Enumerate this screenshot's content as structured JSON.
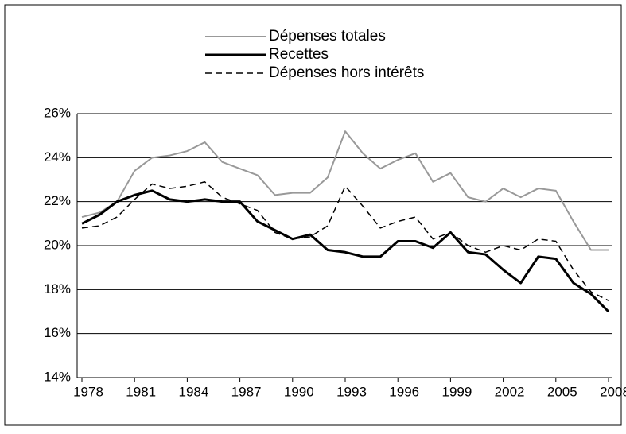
{
  "chart_data": {
    "type": "line",
    "x": [
      1978,
      1979,
      1980,
      1981,
      1982,
      1983,
      1984,
      1985,
      1986,
      1987,
      1988,
      1989,
      1990,
      1991,
      1992,
      1993,
      1994,
      1995,
      1996,
      1997,
      1998,
      1999,
      2000,
      2001,
      2002,
      2003,
      2004,
      2005,
      2006,
      2007,
      2008
    ],
    "series": [
      {
        "name": "Dépenses totales",
        "color": "#999999",
        "width": 2,
        "line_style": "solid",
        "values": [
          21.3,
          21.5,
          22.0,
          23.4,
          24.0,
          24.1,
          24.3,
          24.7,
          23.8,
          23.5,
          23.2,
          22.3,
          22.4,
          22.4,
          23.1,
          25.2,
          24.2,
          23.5,
          23.9,
          24.2,
          22.9,
          23.3,
          22.2,
          22.0,
          22.6,
          22.2,
          22.6,
          22.5,
          21.1,
          19.8,
          19.8
        ]
      },
      {
        "name": "Recettes",
        "color": "#000000",
        "width": 3,
        "line_style": "solid",
        "values": [
          21.0,
          21.4,
          22.0,
          22.3,
          22.5,
          22.1,
          22.0,
          22.1,
          22.0,
          22.0,
          21.1,
          20.7,
          20.3,
          20.5,
          19.8,
          19.7,
          19.5,
          19.5,
          20.2,
          20.2,
          19.9,
          20.6,
          19.7,
          19.6,
          18.9,
          18.3,
          19.5,
          19.4,
          18.3,
          17.8,
          17.0
        ]
      },
      {
        "name": "Dépenses hors intérêts",
        "color": "#000000",
        "width": 1.5,
        "line_style": "dashed",
        "values": [
          20.8,
          20.9,
          21.3,
          22.1,
          22.8,
          22.6,
          22.7,
          22.9,
          22.2,
          21.9,
          21.6,
          20.6,
          20.3,
          20.4,
          20.9,
          22.7,
          21.8,
          20.8,
          21.1,
          21.3,
          20.3,
          20.6,
          20.0,
          19.7,
          20.0,
          19.8,
          20.3,
          20.2,
          18.9,
          17.9,
          17.5
        ]
      }
    ],
    "xlim": [
      1978,
      2008
    ],
    "xticks": [
      1978,
      1981,
      1984,
      1987,
      1990,
      1993,
      1996,
      1999,
      2002,
      2005,
      2008
    ],
    "ylim": [
      14,
      26
    ],
    "yticks": [
      {
        "value": 14,
        "label": "14%"
      },
      {
        "value": 16,
        "label": "16%"
      },
      {
        "value": 18,
        "label": "18%"
      },
      {
        "value": 20,
        "label": "20%"
      },
      {
        "value": 22,
        "label": "22%"
      },
      {
        "value": 24,
        "label": "24%"
      },
      {
        "value": 26,
        "label": "26%"
      }
    ],
    "grid": true,
    "legend": "top"
  }
}
